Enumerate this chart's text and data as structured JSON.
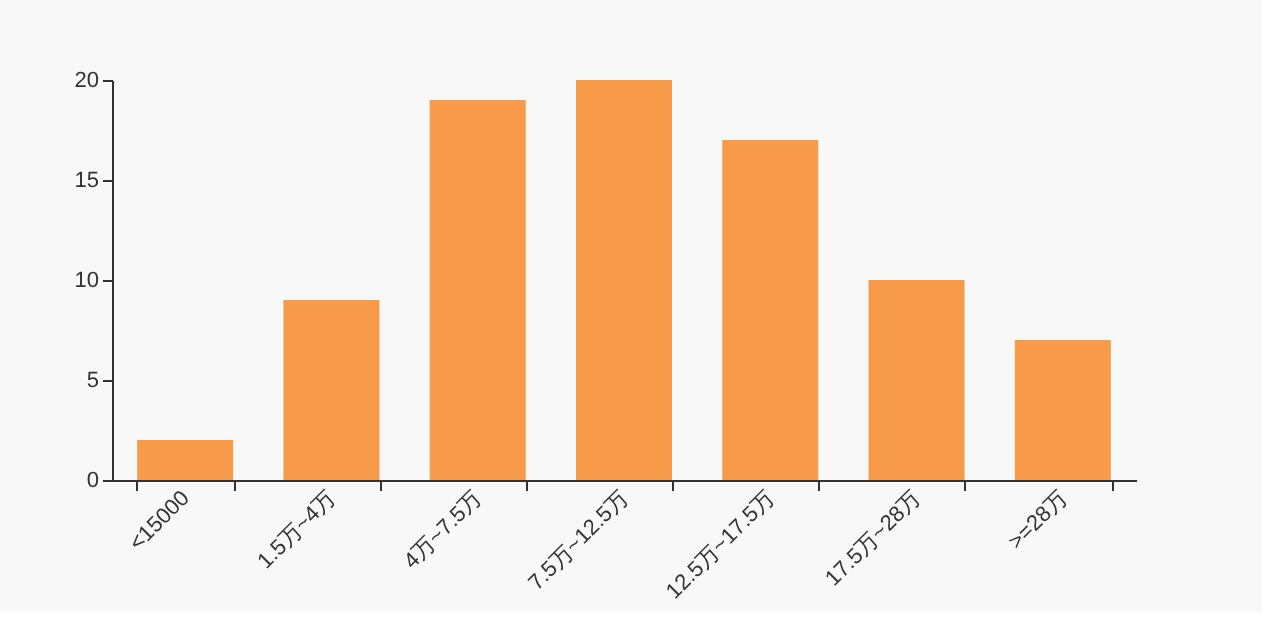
{
  "chart_data": {
    "type": "bar",
    "categories": [
      "<15000",
      "1.5万~4万",
      "4万~7.5万",
      "7.5万~12.5万",
      "12.5万~17.5万",
      "17.5万~28万",
      ">=28万"
    ],
    "values": [
      2,
      9,
      19,
      20,
      17,
      10,
      7
    ],
    "color": "#f79a4a",
    "ylim": [
      0,
      20
    ],
    "yticks": [
      0,
      5,
      10,
      15,
      20
    ],
    "grid": false
  }
}
